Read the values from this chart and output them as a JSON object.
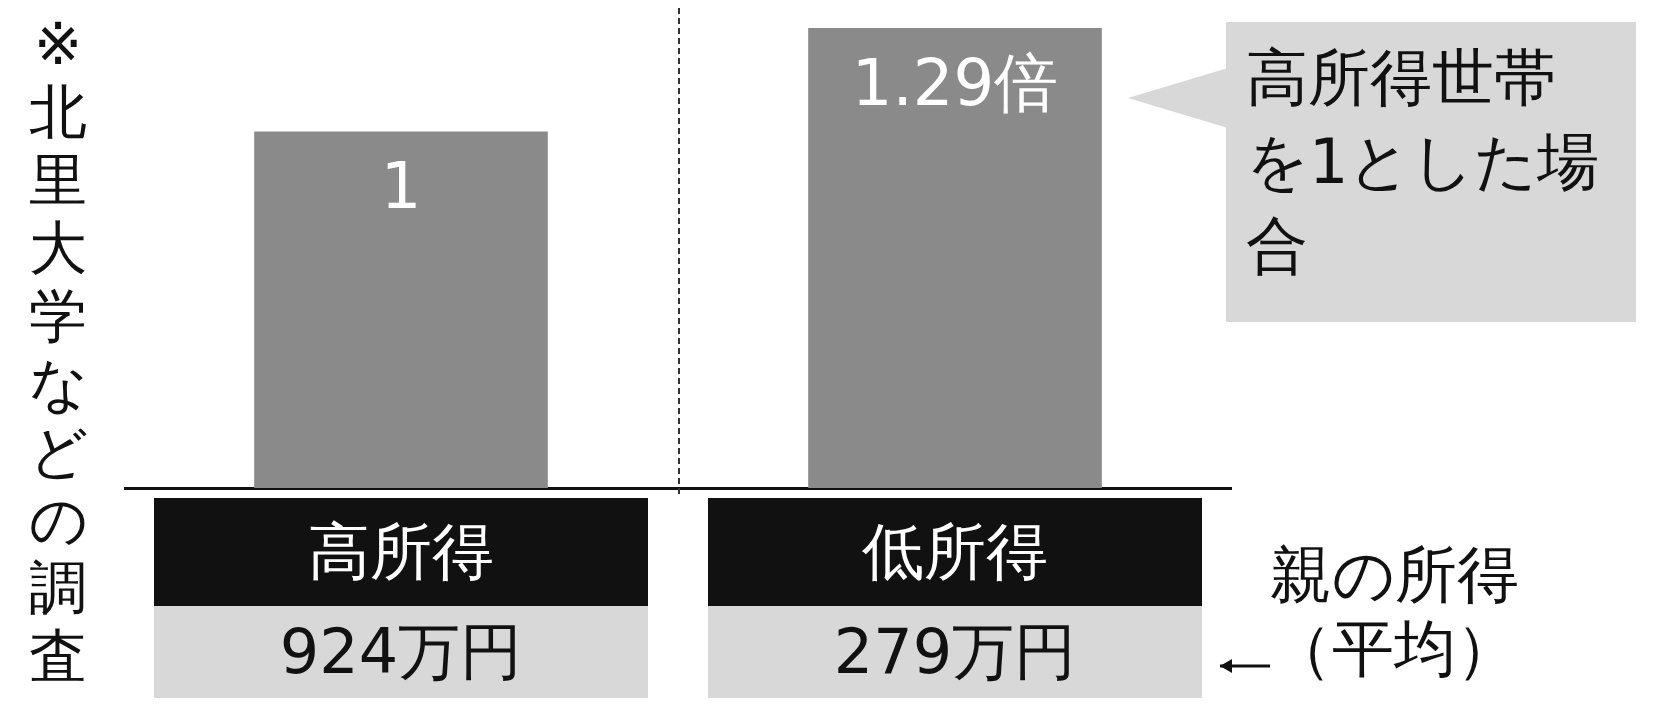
{
  "chart_data": {
    "type": "bar",
    "categories": [
      "高所得",
      "低所得"
    ],
    "values": [
      1,
      1.29
    ],
    "color": "#8a8a8a",
    "value_labels": [
      "1",
      "1.29倍"
    ],
    "annotations": [
      "924万円",
      "279万円",
      "高所得世帯を1とした場合",
      "親の所得（平均）",
      "※北里大学などの調査"
    ]
  }
}
